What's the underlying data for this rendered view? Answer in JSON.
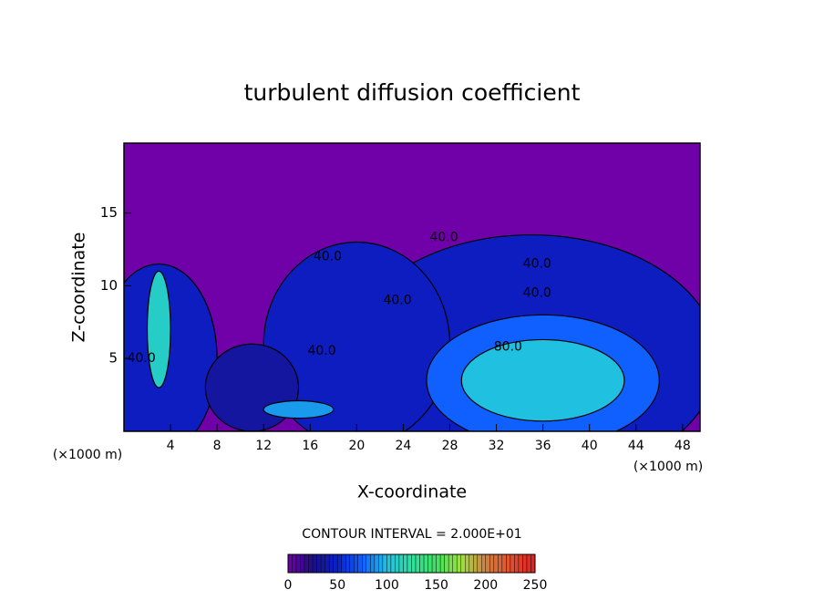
{
  "chart_data": {
    "type": "contour",
    "title": "turbulent diffusion coefficient",
    "xlabel": "X-coordinate",
    "ylabel": "Z-coordinate",
    "x_unit": "(×1000 m)",
    "y_unit": "(×1000 m)",
    "xlim": [
      0,
      49.5
    ],
    "ylim": [
      0,
      19.8
    ],
    "xticks": [
      4,
      8,
      12,
      16,
      20,
      24,
      28,
      32,
      36,
      40,
      44,
      48
    ],
    "yticks": [
      5,
      10,
      15
    ],
    "background_value": 0,
    "regions": [
      {
        "x": 35,
        "y": 5,
        "rx": 16,
        "ry": 8.5,
        "value": 45
      },
      {
        "x": 20,
        "y": 6,
        "rx": 8,
        "ry": 7,
        "value": 45
      },
      {
        "x": 3,
        "y": 5,
        "rx": 5,
        "ry": 6.5,
        "value": 45
      },
      {
        "x": 11,
        "y": 3,
        "rx": 4,
        "ry": 3,
        "value": 35
      },
      {
        "x": 36,
        "y": 3.5,
        "rx": 10,
        "ry": 4.5,
        "value": 75
      },
      {
        "x": 36,
        "y": 3.5,
        "rx": 7,
        "ry": 2.8,
        "value": 100
      },
      {
        "x": 3,
        "y": 7,
        "rx": 1,
        "ry": 4,
        "value": 110
      },
      {
        "x": 15,
        "y": 1.5,
        "rx": 3,
        "ry": 0.6,
        "value": 90
      }
    ],
    "contour_labels": [
      {
        "text": "40.0",
        "x": 17.5,
        "y": 12
      },
      {
        "text": "40.0",
        "x": 27.5,
        "y": 13.3
      },
      {
        "text": "40.0",
        "x": 35.5,
        "y": 11.5
      },
      {
        "text": "40.0",
        "x": 35.5,
        "y": 9.5
      },
      {
        "text": "40.0",
        "x": 23.5,
        "y": 9
      },
      {
        "text": "40.0",
        "x": 17,
        "y": 5.5
      },
      {
        "text": "40.0",
        "x": 1.5,
        "y": 5
      },
      {
        "text": "80.0",
        "x": 33,
        "y": 5.8
      }
    ],
    "colorbar_title": "CONTOUR INTERVAL = 2.000E+01",
    "clim": [
      0,
      250
    ],
    "cticks": [
      0,
      50,
      100,
      150,
      200,
      250
    ],
    "colorscale": [
      "#7000a8",
      "#1a1080",
      "#0a20d0",
      "#1060ff",
      "#20c0e0",
      "#30e0a0",
      "#40e060",
      "#a0e040",
      "#d08040",
      "#e05030",
      "#e02020"
    ]
  }
}
